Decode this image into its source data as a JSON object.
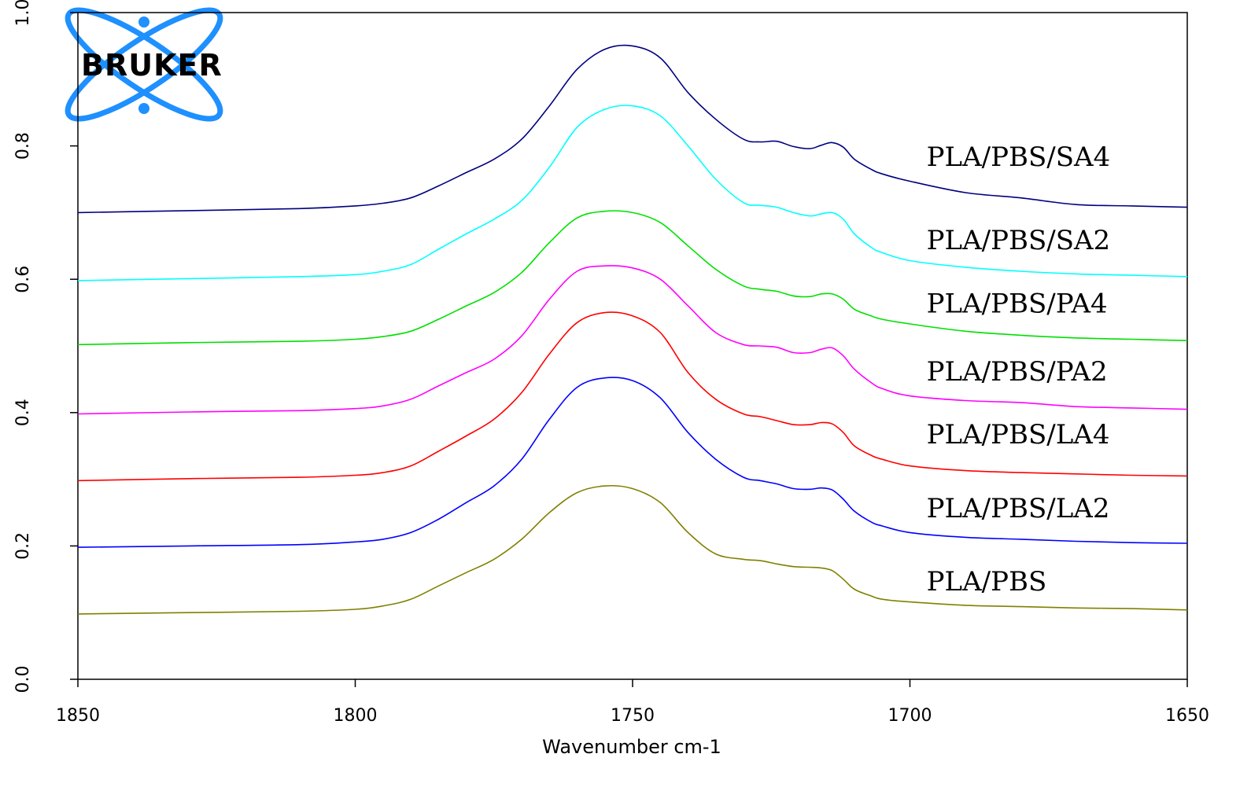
{
  "chart_data": {
    "type": "line",
    "xlabel": "Wavenumber cm-1",
    "ylabel": "",
    "xlim": [
      1850,
      1650
    ],
    "ylim": [
      0,
      1.0
    ],
    "x_reversed": true,
    "x_ticks": [
      1850,
      1800,
      1750,
      1700,
      1650
    ],
    "y_ticks": [
      0.0,
      0.2,
      0.4,
      0.6,
      0.8,
      1.0
    ],
    "y_tick_labels": [
      "0.0",
      "0.2",
      "0.4",
      "0.6",
      "0.8",
      "1.0"
    ],
    "grid": false,
    "legend": "none",
    "logo": {
      "text": "BRUKER",
      "color": "#1E90FF"
    },
    "x": [
      1850,
      1830,
      1810,
      1800,
      1795,
      1790,
      1785,
      1780,
      1775,
      1770,
      1765,
      1760,
      1755,
      1750,
      1745,
      1740,
      1735,
      1730,
      1727,
      1724,
      1721,
      1718,
      1716,
      1714,
      1712,
      1710,
      1707,
      1705,
      1700,
      1690,
      1680,
      1670,
      1660,
      1650
    ],
    "series": [
      {
        "name": "PLA/PBS/SA4",
        "color": "#000080",
        "values": [
          0.7,
          0.703,
          0.706,
          0.71,
          0.714,
          0.722,
          0.74,
          0.76,
          0.78,
          0.81,
          0.86,
          0.915,
          0.945,
          0.95,
          0.932,
          0.88,
          0.84,
          0.81,
          0.806,
          0.807,
          0.799,
          0.796,
          0.801,
          0.805,
          0.798,
          0.78,
          0.765,
          0.758,
          0.747,
          0.73,
          0.722,
          0.712,
          0.71,
          0.708
        ]
      },
      {
        "name": "PLA/PBS/SA2",
        "color": "#00FFFF",
        "values": [
          0.598,
          0.601,
          0.604,
          0.607,
          0.612,
          0.622,
          0.645,
          0.668,
          0.69,
          0.718,
          0.768,
          0.828,
          0.855,
          0.86,
          0.845,
          0.8,
          0.75,
          0.715,
          0.711,
          0.708,
          0.7,
          0.695,
          0.698,
          0.7,
          0.69,
          0.668,
          0.648,
          0.64,
          0.628,
          0.618,
          0.612,
          0.608,
          0.606,
          0.604
        ]
      },
      {
        "name": "PLA/PBS/PA4",
        "color": "#00E000",
        "values": [
          0.502,
          0.505,
          0.507,
          0.51,
          0.514,
          0.522,
          0.54,
          0.56,
          0.58,
          0.61,
          0.655,
          0.692,
          0.702,
          0.7,
          0.685,
          0.65,
          0.615,
          0.59,
          0.585,
          0.582,
          0.575,
          0.574,
          0.578,
          0.578,
          0.57,
          0.555,
          0.545,
          0.54,
          0.533,
          0.522,
          0.516,
          0.512,
          0.51,
          0.508
        ]
      },
      {
        "name": "PLA/PBS/PA2",
        "color": "#FF00FF",
        "values": [
          0.398,
          0.401,
          0.403,
          0.406,
          0.41,
          0.42,
          0.44,
          0.46,
          0.48,
          0.515,
          0.57,
          0.612,
          0.62,
          0.617,
          0.6,
          0.56,
          0.52,
          0.502,
          0.5,
          0.498,
          0.49,
          0.49,
          0.495,
          0.497,
          0.485,
          0.465,
          0.445,
          0.436,
          0.425,
          0.418,
          0.415,
          0.409,
          0.407,
          0.405
        ]
      },
      {
        "name": "PLA/PBS/LA4",
        "color": "#FF0000",
        "values": [
          0.298,
          0.301,
          0.303,
          0.306,
          0.31,
          0.32,
          0.342,
          0.365,
          0.39,
          0.43,
          0.488,
          0.535,
          0.55,
          0.545,
          0.52,
          0.46,
          0.42,
          0.398,
          0.394,
          0.388,
          0.382,
          0.382,
          0.385,
          0.383,
          0.37,
          0.35,
          0.336,
          0.33,
          0.32,
          0.313,
          0.31,
          0.308,
          0.306,
          0.305
        ]
      },
      {
        "name": "PLA/PBS/LA2",
        "color": "#0000FF",
        "values": [
          0.198,
          0.2,
          0.202,
          0.206,
          0.21,
          0.22,
          0.24,
          0.265,
          0.29,
          0.33,
          0.39,
          0.438,
          0.452,
          0.448,
          0.422,
          0.37,
          0.33,
          0.303,
          0.298,
          0.293,
          0.286,
          0.285,
          0.287,
          0.284,
          0.27,
          0.252,
          0.236,
          0.23,
          0.22,
          0.213,
          0.21,
          0.207,
          0.205,
          0.204
        ]
      },
      {
        "name": "PLA/PBS",
        "color": "#808000",
        "values": [
          0.098,
          0.1,
          0.102,
          0.105,
          0.11,
          0.12,
          0.14,
          0.16,
          0.18,
          0.21,
          0.25,
          0.28,
          0.29,
          0.286,
          0.265,
          0.22,
          0.188,
          0.18,
          0.178,
          0.173,
          0.169,
          0.168,
          0.167,
          0.163,
          0.15,
          0.135,
          0.125,
          0.12,
          0.116,
          0.111,
          0.109,
          0.107,
          0.106,
          0.104
        ]
      }
    ],
    "series_label_y": [
      0.77,
      0.645,
      0.55,
      0.448,
      0.354,
      0.243,
      0.133
    ],
    "series_label_x": 1697
  }
}
